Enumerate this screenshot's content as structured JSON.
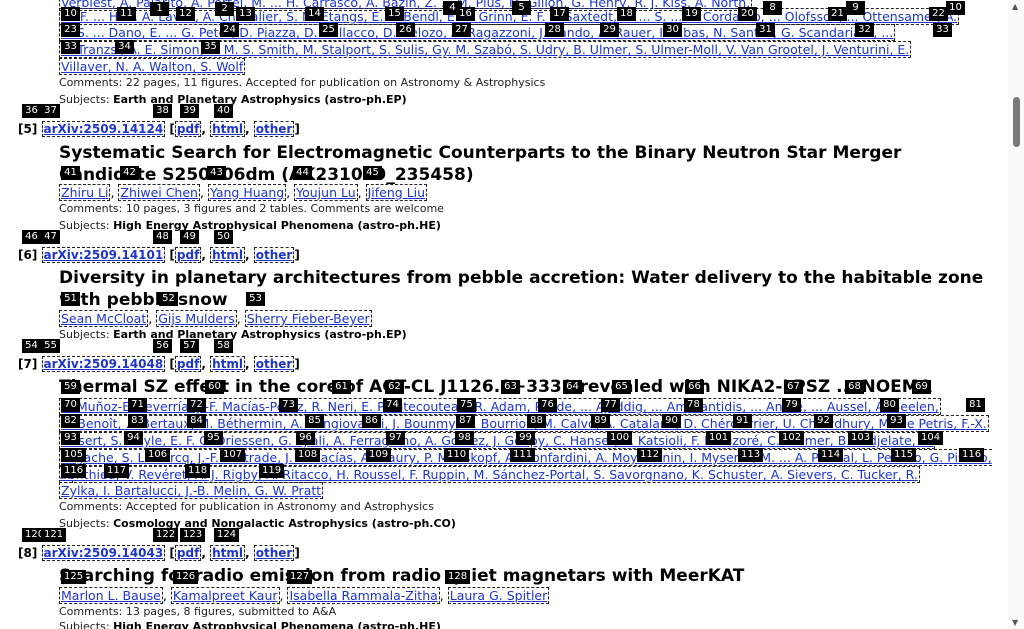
{
  "entry4": {
    "authors_line1": "Verbiest, A. Pajarito, A. Portel, M. ... H. Carrasco, A. Bazin, Z. ... M. Plus, M. Gillon, G. Henry, R. J. Kiss, A. North,",
    "authors_line2": "W. F. ... H. ... A. Lavail, A. Chevalier, S. M. Etangs, E. ... Bendl, E. ... Grinn, E. F. L. Saxtedt, G. ... S. ... C. Cordasco, ... Olofsson, ... Ottensamer, A.",
    "authors_line3": "... S. ... Dano, E. ... G. Peter, D. Piazza, D. Gallacco, D. Delozo, A. Ragazzoni, J. Rando, A. Rauer, I. Ribas, N. Santos, G. Scandariato, ...",
    "authors_line4": "A. Tranzsi, A. E. Simon, A. M. S. Smith, M. Stalport, S. Sulis, Gy. M. Szabó, S. Udry, B. Ulmer, S. Ulmer-Moll, V. Van Grootel, J. Venturini, E.",
    "authors_line5": "Villaver, N. A. Walton, S. Wolf",
    "comments": "Comments: 22 pages, 11 figures. Accepted for publication on Astronomy & Astrophysics",
    "subjects_label": "Subjects:",
    "subjects": "Earth and Planetary Astrophysics (astro-ph.EP)"
  },
  "entry5": {
    "num": "[5]",
    "arxiv": "arXiv:2509.14124",
    "pdf": "pdf",
    "html": "html",
    "other": "other",
    "title": "Systematic Search for Electromagnetic Counterparts to the Binary Neutron Star Merger Candidate S250206dm (AK231029_235458)",
    "authors": [
      "Zhiru Li",
      "Zhiwei Chen",
      "Yang Huang",
      "Youjun Lu",
      "Jifeng Liu"
    ],
    "comments": "Comments: 10 pages, 3 figures and 2 tables. Comments are welcome",
    "subjects_label": "Subjects:",
    "subjects": "High Energy Astrophysical Phenomena (astro-ph.HE)"
  },
  "entry6": {
    "num": "[6]",
    "arxiv": "arXiv:2509.14101",
    "pdf": "pdf",
    "html": "html",
    "other": "other",
    "title": "Diversity in planetary architectures from pebble accretion: Water delivery to the habitable zone with pebble snow",
    "authors": [
      "Sean McCloat",
      "Gijs Mulders",
      "Sherry Fieber-Beyer"
    ],
    "subjects_label": "Subjects:",
    "subjects": "Earth and Planetary Astrophysics (astro-ph.EP)"
  },
  "entry7": {
    "num": "[7]",
    "arxiv": "arXiv:2509.14048",
    "pdf": "pdf",
    "html": "html",
    "other": "other",
    "title": "Thermal SZ effect in the core of ACT-CL J1126.9+3332 revealed with NIKA2-LPSZ ... NOEMA",
    "authors_line1": "... Muñoz-Echeverría, J.-F. Macías-Pérez, R. Neri, E. Pointecouteau, R. Adam, P. Ade, ... Ajeddig, ... Amarantidis, ... Andrè, ... Aussel, A. Beelen,",
    "authors_line2": "A. Benoît, ... Bertaux, M. Béthermin, A. Bongiovanni, J. Bounmy, O. Bourrion, M. Calvo, A. Catalano, D. Chérouvrier, U. Chowdhury, M. De Petris, F.-X.",
    "authors_line3": "Désert, S. Doyle, E. F. C. Driessen, G. Ejlali, A. Ferragamo, A. Gomez, J. Goupy, C. Hanser, S. Katsioli, F. Kéruzoré, C. Kramer, B. Ladjelate, G.",
    "authors_line4": "Lagache, S. Leclercq, J.-F. Lestrade, J. F. Macías, A. Maury, P. Mauskopf, A. Monfardini, A. Moyer-Anin, I. Myserlis, M. ... A. Paliwal, L. Perotto, G. Pisano, ...",
    "authors_line5": "Ponthieu, V. Revéret, A. J. Rigby, A. Ritacco, H. Roussel, F. Ruppin, M. Sánchez-Portal, S. Savorgnano, K. Schuster, A. Sievers, C. Tucker, R.",
    "authors_line6": "Zylka, I. Bartalucci, J.-B. Melin, G. W. Pratt",
    "comments": "Comments: Accepted for publication in Astronomy and Astrophysics",
    "subjects_label": "Subjects:",
    "subjects": "Cosmology and Nongalactic Astrophysics (astro-ph.CO)"
  },
  "entry8": {
    "num": "[8]",
    "arxiv": "arXiv:2509.14043",
    "pdf": "pdf",
    "html": "html",
    "other": "other",
    "title": "Searching for radio emission from radio quiet magnetars with MeerKAT",
    "authors": [
      "Marlon L. Bause",
      "Kamalpreet Kaur",
      "Isabella Rammala-Zitha",
      "Laura G. Spitler"
    ],
    "comments": "Comments: 13 pages, 8 figures, submitted to A&A",
    "subjects_label": "Subjects:",
    "subjects": "High Energy Astrophysical Phenomena (astro-ph.HE)"
  },
  "tags_top": [
    "1",
    "2",
    "3",
    "4",
    "5",
    "6",
    "7",
    "8",
    "9",
    "10",
    "11",
    "12",
    "13",
    "14",
    "15",
    "16",
    "17",
    "18",
    "19",
    "20",
    "21",
    "22",
    "23",
    "24",
    "25",
    "26",
    "27",
    "28",
    "29",
    "30",
    "31",
    "32",
    "33",
    "34",
    "35"
  ],
  "tags": {
    "t10": "10",
    "t11": "11",
    "t12": "12",
    "t13": "13",
    "t14": "14",
    "t15": "15",
    "t16": "16",
    "t17": "17",
    "t18": "18",
    "t19": "19",
    "t20": "20",
    "t21": "21",
    "t22": "22",
    "t1": "1",
    "t2": "2",
    "t4": "4",
    "t5": "5",
    "t8": "8",
    "t9": "9",
    "t10b": "10",
    "t23": "23",
    "t24": "24",
    "t25": "25",
    "t26": "26",
    "t27": "27",
    "t28": "28",
    "t29": "29",
    "t30": "30",
    "t31": "31",
    "t32": "32",
    "t33b": "33",
    "t33": "33",
    "t34": "34",
    "t35": "35",
    "t36": "36",
    "t37": "37",
    "t38": "38",
    "t39": "39",
    "t40": "40",
    "t41": "41",
    "t42": "42",
    "t43": "43",
    "t44": "44",
    "t45": "45",
    "t46": "46",
    "t47": "47",
    "t48": "48",
    "t49": "49",
    "t50": "50",
    "t51": "51",
    "t52": "52",
    "t53": "53",
    "t54": "54",
    "t55": "55",
    "t56": "56",
    "t57": "57",
    "t58": "58",
    "t59": "59",
    "t60": "60",
    "t61": "61",
    "t62": "62",
    "t63": "63",
    "t64": "64",
    "t65": "65",
    "t66": "66",
    "t67": "67",
    "t68": "68",
    "t69": "69",
    "t70": "70",
    "t71": "71",
    "t72": "72",
    "t73": "73",
    "t74": "74",
    "t75": "75",
    "t76": "76",
    "t77": "77",
    "t78": "78",
    "t79": "79",
    "t80": "80",
    "t81": "81",
    "t82": "82",
    "t83": "83",
    "t84": "84",
    "t85": "85",
    "t86": "86",
    "t87": "87",
    "t88": "88",
    "t89": "89",
    "t90": "90",
    "t91": "91",
    "t92": "92",
    "t93b": "93",
    "t93": "93",
    "t94": "94",
    "t95": "95",
    "t96": "96",
    "t97": "97",
    "t98": "98",
    "t99": "99",
    "t100": "100",
    "t101": "101",
    "t102": "102",
    "t103": "103",
    "t104": "104",
    "t105": "105",
    "t106": "106",
    "t107": "107",
    "t108": "108",
    "t109": "109",
    "t110": "110",
    "t111": "111",
    "t112": "112",
    "t113": "113",
    "t114": "114",
    "t115": "115",
    "t116b": "116",
    "t116": "116",
    "t117": "117",
    "t118": "118",
    "t119": "119",
    "t120": "120",
    "t121": "121",
    "t122": "122",
    "t123": "123",
    "t124": "124",
    "t125": "125",
    "t126": "126",
    "t127": "127",
    "t128": "128"
  }
}
